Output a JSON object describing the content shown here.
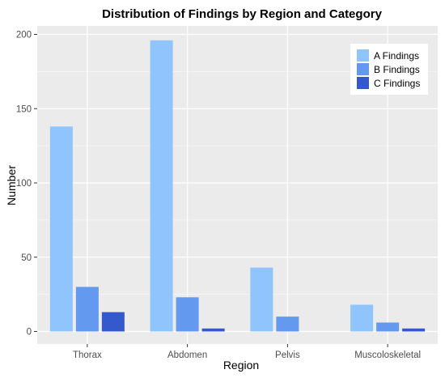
{
  "chart_data": {
    "type": "bar",
    "title": "Distribution of Findings by Region and Category",
    "xlabel": "Region",
    "ylabel": "Number",
    "categories": [
      "Thorax",
      "Abdomen",
      "Pelvis",
      "Muscoloskeletal"
    ],
    "series": [
      {
        "name": "A Findings",
        "values": [
          138,
          196,
          43,
          18
        ],
        "color": "#90c4fc"
      },
      {
        "name": "B Findings",
        "values": [
          30,
          23,
          10,
          6
        ],
        "color": "#6399ee"
      },
      {
        "name": "C Findings",
        "values": [
          13,
          2,
          0,
          2
        ],
        "color": "#3459cd"
      }
    ],
    "ylim": [
      0,
      200
    ],
    "yticks": [
      0,
      50,
      100,
      150,
      200
    ],
    "grid": true,
    "legend": "top-right",
    "background": "#ebebeb",
    "gridline_color": "#ffffff"
  }
}
